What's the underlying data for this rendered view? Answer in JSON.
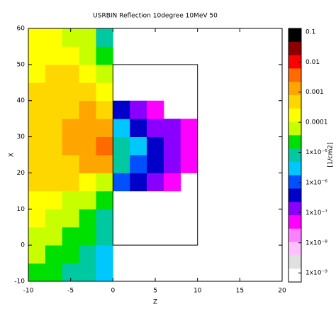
{
  "chart_data": {
    "type": "heatmap",
    "title": "USRBIN Reflection 10degree 10MeV 50",
    "x_label": "Z",
    "y_label": "X",
    "colorbar_label": "[1/cm2]",
    "xlim": [
      -10,
      20
    ],
    "xticks": [
      -10,
      -5,
      0,
      5,
      10,
      15,
      20
    ],
    "ylim": [
      -10,
      60
    ],
    "yticks": [
      -10,
      0,
      10,
      20,
      30,
      40,
      50,
      60
    ],
    "z_edges": [
      -10,
      -8,
      -6,
      -4,
      -2,
      0,
      2,
      4,
      6,
      8,
      10
    ],
    "x_edges": [
      -10,
      -5,
      0,
      5,
      10,
      15,
      20,
      25,
      30,
      35,
      40,
      45,
      50,
      55,
      60
    ],
    "values": [
      [
        3e-05,
        2e-05,
        1e-05,
        5e-06,
        2e-06,
        null,
        null,
        null,
        null,
        null
      ],
      [
        5e-05,
        3e-05,
        2e-05,
        1e-05,
        3e-06,
        null,
        null,
        null,
        null,
        null
      ],
      [
        0.0001,
        5e-05,
        3e-05,
        2e-05,
        5e-06,
        null,
        null,
        null,
        null,
        null
      ],
      [
        0.00015,
        0.0001,
        5e-05,
        3e-05,
        1e-05,
        null,
        null,
        null,
        null,
        null
      ],
      [
        0.0002,
        0.0002,
        0.0001,
        5e-05,
        3e-05,
        null,
        null,
        null,
        null,
        null
      ],
      [
        0.0003,
        0.0003,
        0.0003,
        0.0002,
        0.0001,
        1e-06,
        3e-07,
        1e-07,
        3e-08,
        null
      ],
      [
        0.0004,
        0.0005,
        0.0007,
        0.001,
        0.002,
        5e-06,
        1e-06,
        3e-07,
        1e-07,
        3e-08
      ],
      [
        0.0004,
        0.0006,
        0.001,
        0.002,
        0.005,
        1e-05,
        2e-06,
        5e-07,
        2e-07,
        5e-08
      ],
      [
        0.0004,
        0.0005,
        0.0008,
        0.001,
        0.002,
        2e-06,
        5e-07,
        2e-07,
        1e-07,
        3e-08
      ],
      [
        0.0003,
        0.0004,
        0.0005,
        0.001,
        0.0005,
        3e-07,
        1e-07,
        5e-08,
        null,
        null
      ],
      [
        0.0003,
        0.0003,
        0.0004,
        0.0005,
        0.0002,
        null,
        null,
        null,
        null,
        null
      ],
      [
        0.0002,
        0.0003,
        0.0003,
        0.0002,
        0.0001,
        null,
        null,
        null,
        null,
        null
      ],
      [
        0.0002,
        0.0002,
        0.0002,
        0.0001,
        3e-05,
        null,
        null,
        null,
        null,
        null
      ],
      [
        0.0002,
        0.0002,
        0.0001,
        5e-05,
        1e-05,
        null,
        null,
        null,
        null,
        null
      ]
    ],
    "log_color_scale": true,
    "clim": [
      5e-10,
      0.13
    ],
    "colorbar_colors": [
      "#000000",
      "#8b0000",
      "#ff0000",
      "#ff6a00",
      "#ffa500",
      "#ffd700",
      "#ffff00",
      "#c8ff00",
      "#00e000",
      "#00c8a0",
      "#00c8ff",
      "#0050ff",
      "#0000c8",
      "#8a00ff",
      "#ff00ff",
      "#ff80ff",
      "#ffc0ff",
      "#e0e0e0",
      "#ffffff"
    ],
    "cticks": [
      0.1,
      0.01,
      0.001,
      0.0001,
      {
        "value": 1e-05,
        "label": "1x10⁻⁵"
      },
      {
        "value": 1e-06,
        "label": "1x10⁻⁶"
      },
      {
        "value": 1e-07,
        "label": "1x10⁻⁷"
      },
      {
        "value": 1e-08,
        "label": "1x10⁻⁸"
      },
      {
        "value": 1e-09,
        "label": "1x10⁻⁹"
      }
    ]
  }
}
